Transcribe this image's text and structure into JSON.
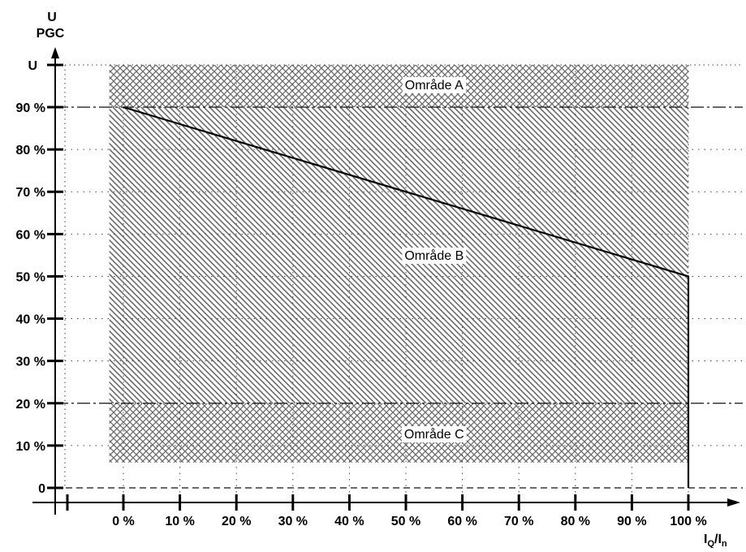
{
  "chart_data": {
    "type": "line",
    "y_axis": {
      "title_main": "U",
      "title_sub": "PGC",
      "top_label": "U",
      "tick_labels": [
        "0",
        "10 %",
        "20 %",
        "30 %",
        "40 %",
        "50 %",
        "60 %",
        "70 %",
        "80 %",
        "90 %"
      ],
      "tick_values": [
        0,
        10,
        20,
        30,
        40,
        50,
        60,
        70,
        80,
        90
      ],
      "range": [
        0,
        100
      ]
    },
    "x_axis": {
      "title": {
        "main1": "I",
        "sub1": "Q",
        "slash": "/",
        "main2": "I",
        "sub2": "n"
      },
      "tick_labels": [
        "0 %",
        "10 %",
        "20 %",
        "30 %",
        "40 %",
        "50 %",
        "60 %",
        "70 %",
        "80 %",
        "90 %",
        "100 %"
      ],
      "tick_values": [
        0,
        10,
        20,
        30,
        40,
        50,
        60,
        70,
        80,
        90,
        100
      ],
      "range": [
        -10,
        110
      ]
    },
    "zones": [
      {
        "name": "Område A",
        "y_from": 90,
        "y_to": 100,
        "pattern": "cross-hatch"
      },
      {
        "name": "Område B",
        "y_from": 20,
        "y_to": 90,
        "pattern": "diagonal-hatch"
      },
      {
        "name": "Område C",
        "y_from": 6,
        "y_to": 20,
        "pattern": "cross-hatch"
      }
    ],
    "zone_x_range": [
      -2.5,
      100
    ],
    "reference_lines": [
      90,
      20,
      0
    ],
    "series": [
      {
        "points": [
          [
            0,
            90
          ],
          [
            100,
            50
          ],
          [
            100,
            0
          ]
        ]
      }
    ],
    "grid": true
  }
}
